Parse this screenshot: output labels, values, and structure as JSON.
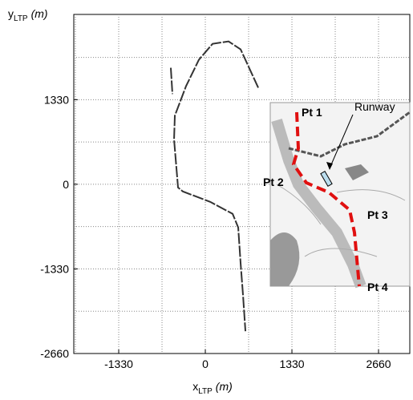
{
  "chart_data": {
    "type": "line",
    "x_label": {
      "main": "x",
      "sub": "LTP",
      "unit": "(m)"
    },
    "y_label": {
      "main": "y",
      "sub": "LTP",
      "unit": "(m)"
    },
    "xlim": [
      -2020,
      3140
    ],
    "ylim": [
      -2660,
      2670
    ],
    "xticks": [
      -1330,
      0,
      1330,
      2660
    ],
    "yticks": [
      -2660,
      -1330,
      0,
      1330
    ],
    "xgrid": [
      -1995,
      -1330,
      -665,
      0,
      665,
      1330,
      1995,
      2660
    ],
    "ygrid": [
      -1995,
      -1330,
      -665,
      0,
      665,
      1330,
      1995
    ],
    "grid": true,
    "series": [
      {
        "color": "#333333",
        "x": [
          -530,
          -505,
          null,
          813,
          542,
          357,
          111,
          -99,
          -296,
          -468,
          -480,
          -419,
          -345,
          74,
          419,
          505,
          542,
          579,
          616
        ],
        "values": [
          1832,
          1418,
          null,
          1518,
          2121,
          2246,
          2208,
          1957,
          1543,
          1079,
          703,
          -50,
          -113,
          -276,
          -464,
          -678,
          -1242,
          -1744,
          -2309
        ]
      }
    ],
    "inset": {
      "labels": [
        "Pt 1",
        "Pt 2",
        "Pt 3",
        "Pt 4"
      ],
      "runway": "Runway"
    }
  }
}
